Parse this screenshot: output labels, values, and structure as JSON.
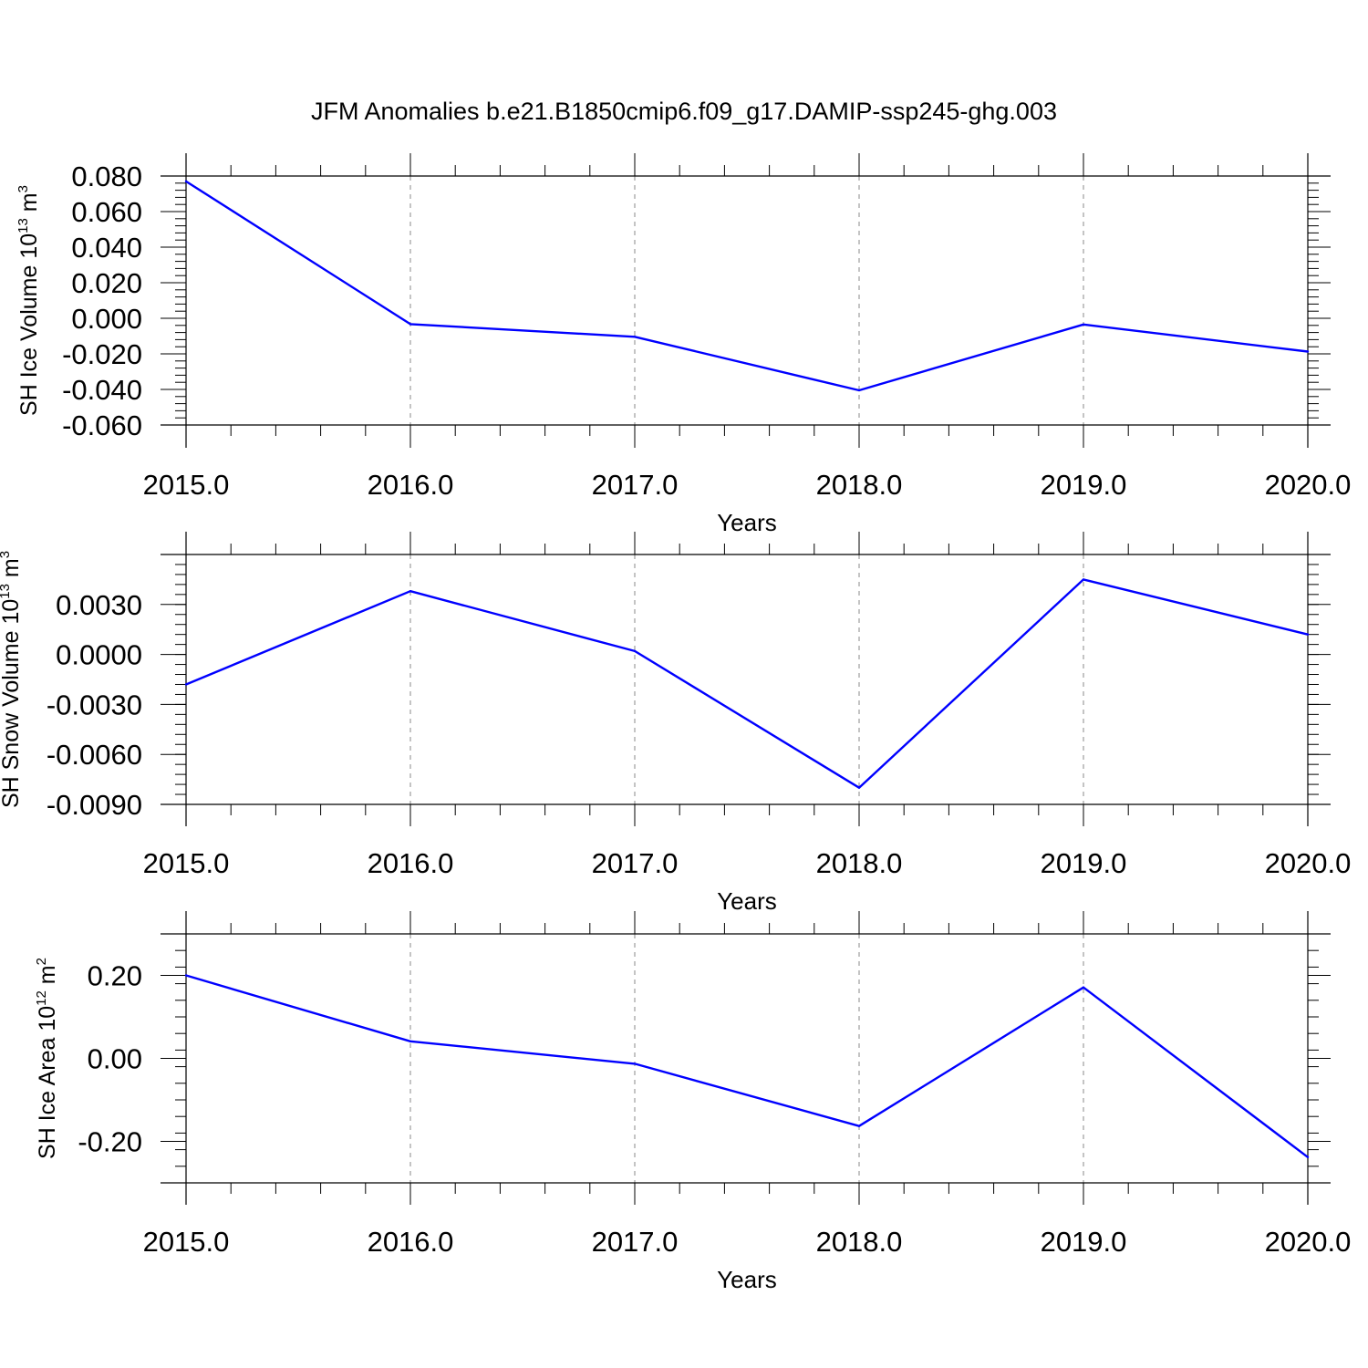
{
  "figure": {
    "title": "JFM Anomalies b.e21.B1850cmip6.f09_g17.DAMIP-ssp245-ghg.003"
  },
  "colors": {
    "series": "#0000ff",
    "axes": "#000000",
    "grid": "#8a8a8a"
  },
  "chart_data": [
    {
      "type": "line",
      "xlabel": "Years",
      "ylabel": {
        "text": "SH Ice Volume 10",
        "exponent": "13",
        "unit": "m",
        "unit_exponent": "3"
      },
      "x": [
        2015,
        2016,
        2017,
        2018,
        2019,
        2020
      ],
      "xlim": [
        2015,
        2020
      ],
      "x_ticks": [
        "2015.0",
        "2016.0",
        "2017.0",
        "2018.0",
        "2019.0",
        "2020.0"
      ],
      "ylim": [
        -0.06,
        0.08
      ],
      "y_tick_values": [
        0.08,
        0.06,
        0.04,
        0.02,
        0.0,
        -0.02,
        -0.04,
        -0.06
      ],
      "y_ticks": [
        "0.080",
        "0.060",
        "0.040",
        "0.020",
        "0.000",
        "-0.020",
        "-0.040",
        "-0.060"
      ],
      "grid": "vertical dashed at major x ticks",
      "series": [
        {
          "values": [
            0.077,
            -0.0033,
            -0.0104,
            -0.0405,
            -0.0035,
            -0.0187
          ]
        }
      ]
    },
    {
      "type": "line",
      "xlabel": "Years",
      "ylabel": {
        "text": "SH Snow Volume 10",
        "exponent": "13",
        "unit": "m",
        "unit_exponent": "3"
      },
      "x": [
        2015,
        2016,
        2017,
        2018,
        2019,
        2020
      ],
      "xlim": [
        2015,
        2020
      ],
      "x_ticks": [
        "2015.0",
        "2016.0",
        "2017.0",
        "2018.0",
        "2019.0",
        "2020.0"
      ],
      "ylim": [
        -0.009,
        0.006
      ],
      "y_tick_values": [
        0.003,
        0.0,
        -0.003,
        -0.006,
        -0.009
      ],
      "y_ticks": [
        "0.0030",
        "0.0000",
        "-0.0030",
        "-0.0060",
        "-0.0090"
      ],
      "grid": "vertical dashed at major x ticks",
      "series": [
        {
          "values": [
            -0.0018,
            0.0038,
            0.0002,
            -0.008,
            0.0045,
            0.0012
          ]
        }
      ]
    },
    {
      "type": "line",
      "xlabel": "Years",
      "ylabel": {
        "text": "SH Ice Area 10",
        "exponent": "12",
        "unit": "m",
        "unit_exponent": "2"
      },
      "x": [
        2015,
        2016,
        2017,
        2018,
        2019,
        2020
      ],
      "xlim": [
        2015,
        2020
      ],
      "x_ticks": [
        "2015.0",
        "2016.0",
        "2017.0",
        "2018.0",
        "2019.0",
        "2020.0"
      ],
      "ylim": [
        -0.3,
        0.3
      ],
      "y_tick_values": [
        0.2,
        0.0,
        -0.2
      ],
      "y_ticks": [
        "0.20",
        "0.00",
        "-0.20"
      ],
      "grid": "vertical dashed at major x ticks",
      "series": [
        {
          "values": [
            0.2,
            0.041,
            -0.013,
            -0.163,
            0.171,
            -0.238
          ]
        }
      ]
    }
  ]
}
